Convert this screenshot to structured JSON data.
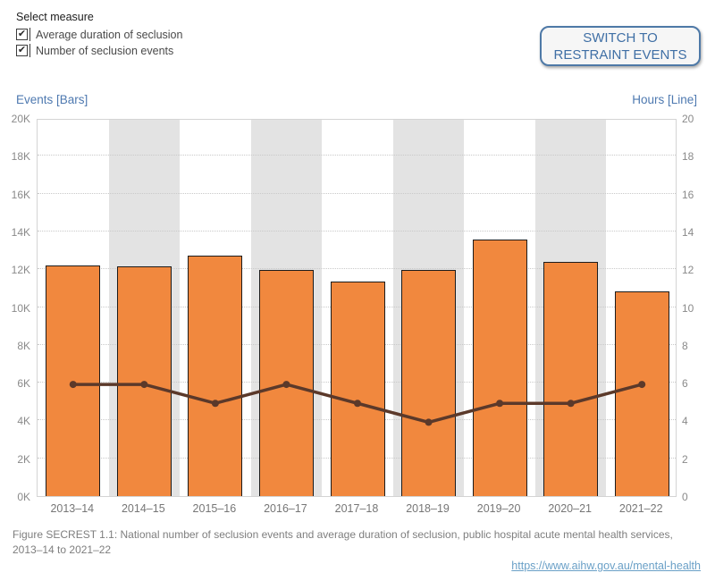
{
  "controls": {
    "title": "Select measure",
    "options": [
      {
        "label": "Average duration of seclusion",
        "checked": true,
        "glyph": "✔"
      },
      {
        "label": "Number of seclusion events",
        "checked": true,
        "glyph": "✔"
      }
    ],
    "switch_button": [
      "SWITCH TO",
      "RESTRAINT EVENTS"
    ]
  },
  "chart_data": {
    "type": "bar",
    "subtype": "combo bar+line, dual axis",
    "left_axis_title": "Events [Bars]",
    "right_axis_title": "Hours [Line]",
    "categories": [
      "2013–14",
      "2014–15",
      "2015–16",
      "2016–17",
      "2017–18",
      "2018–19",
      "2019–20",
      "2020–21",
      "2021–22"
    ],
    "series": [
      {
        "name": "Number of seclusion events",
        "type": "bar",
        "axis": "left",
        "color": "#F1883E",
        "values": [
          12200,
          12150,
          12700,
          11950,
          11350,
          11950,
          13550,
          12400,
          10850
        ]
      },
      {
        "name": "Average duration of seclusion",
        "type": "line",
        "axis": "right",
        "color": "#5B392A",
        "values": [
          6,
          6,
          5,
          6,
          5,
          4,
          5,
          5,
          6
        ]
      }
    ],
    "ylim_left": [
      0,
      20000
    ],
    "left_tick_step": 2000,
    "left_tick_suffix": "K",
    "ylim_right": [
      0,
      20
    ],
    "right_tick_step": 2,
    "grid": "horizontal dotted",
    "legend": "none",
    "shaded_columns": [
      1,
      3,
      5,
      7
    ],
    "band_color": "#E3E3E3"
  },
  "footer": {
    "caption": "Figure SECREST 1.1: National number of seclusion events and average duration of seclusion, public hospital acute mental health services, 2013–14 to 2021–22",
    "link": "https://www.aihw.gov.au/mental-health"
  }
}
